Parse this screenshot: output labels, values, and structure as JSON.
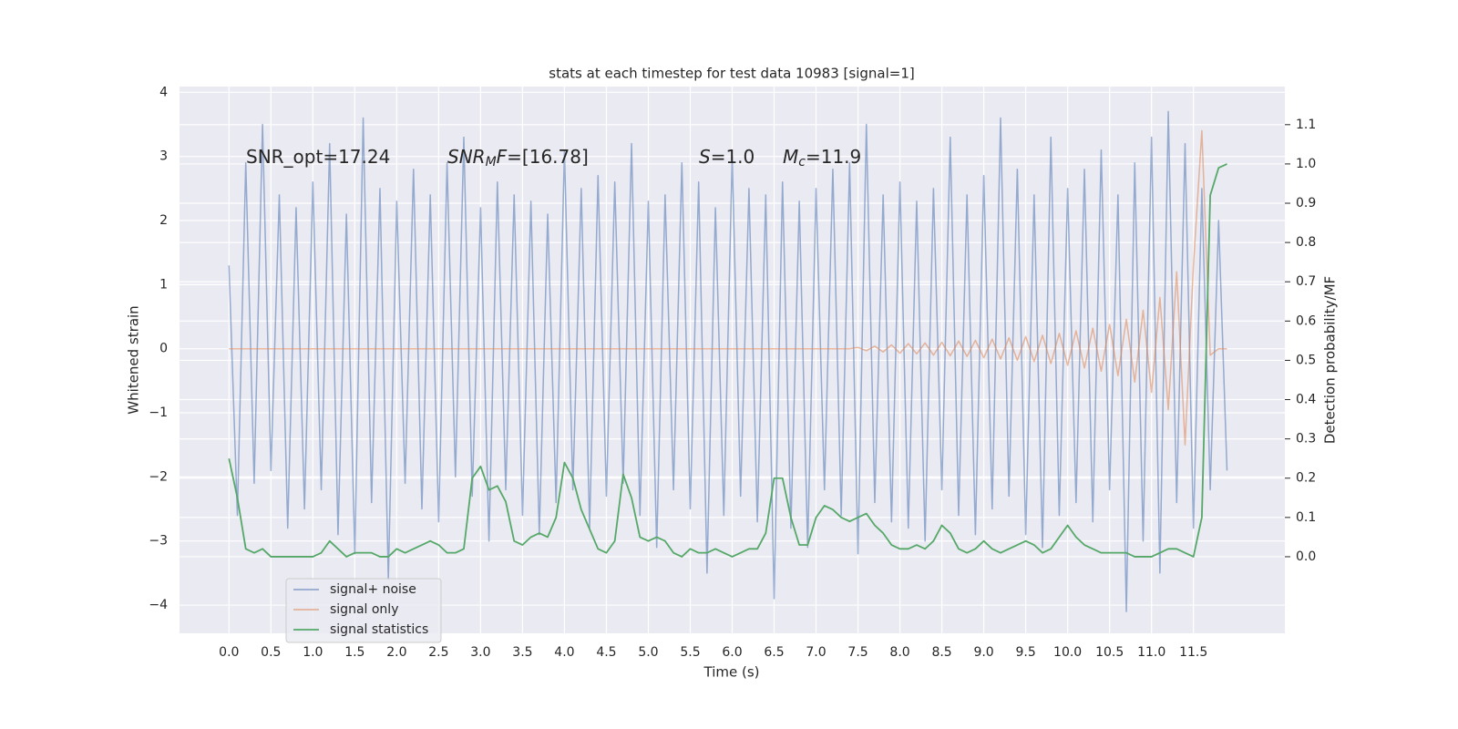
{
  "chart_data": {
    "type": "line",
    "title": "stats at each timestep for test data 10983 [signal=1]",
    "xlabel": "Time (s)",
    "ylabel": "Whitened strain",
    "y2label": "Detection probability/MF",
    "annotations": [
      [
        {
          "text": "SNR_opt=17.24"
        }
      ],
      [
        {
          "text": "SNR",
          "italic": true
        },
        {
          "text": "M",
          "italic": true,
          "sub": true
        },
        {
          "text": "F",
          "italic": true
        },
        {
          "text": "=[16.78]"
        }
      ],
      [
        {
          "text": "S",
          "italic": true
        },
        {
          "text": "=1.0"
        }
      ],
      [
        {
          "text": "M",
          "italic": true
        },
        {
          "text": "c",
          "italic": true,
          "sub": true
        },
        {
          "text": "=11.9"
        }
      ]
    ],
    "x": [
      0.0,
      0.1,
      0.2,
      0.3,
      0.4,
      0.5,
      0.6,
      0.7,
      0.8,
      0.9,
      1.0,
      1.1,
      1.2,
      1.3,
      1.4,
      1.5,
      1.6,
      1.7,
      1.8,
      1.9,
      2.0,
      2.1,
      2.2,
      2.3,
      2.4,
      2.5,
      2.6,
      2.7,
      2.8,
      2.9,
      3.0,
      3.1,
      3.2,
      3.3,
      3.4,
      3.5,
      3.6,
      3.7,
      3.8,
      3.9,
      4.0,
      4.1,
      4.2,
      4.3,
      4.4,
      4.5,
      4.6,
      4.7,
      4.8,
      4.9,
      5.0,
      5.1,
      5.2,
      5.3,
      5.4,
      5.5,
      5.6,
      5.7,
      5.8,
      5.9,
      6.0,
      6.1,
      6.2,
      6.3,
      6.4,
      6.5,
      6.6,
      6.7,
      6.8,
      6.9,
      7.0,
      7.1,
      7.2,
      7.3,
      7.4,
      7.5,
      7.6,
      7.7,
      7.8,
      7.9,
      8.0,
      8.1,
      8.2,
      8.3,
      8.4,
      8.5,
      8.6,
      8.7,
      8.8,
      8.9,
      9.0,
      9.1,
      9.2,
      9.3,
      9.4,
      9.5,
      9.6,
      9.7,
      9.8,
      9.9,
      10.0,
      10.1,
      10.2,
      10.3,
      10.4,
      10.5,
      10.6,
      10.7,
      10.8,
      10.9,
      11.0,
      11.1,
      11.2,
      11.3,
      11.4,
      11.5,
      11.6,
      11.7,
      11.8,
      11.9
    ],
    "series": [
      {
        "name": "signal+ noise",
        "color": "#4c72b0",
        "values": [
          1.3,
          -2.6,
          2.9,
          -2.1,
          3.5,
          -1.9,
          2.4,
          -2.8,
          2.2,
          -2.5,
          2.6,
          -2.2,
          3.2,
          -2.9,
          2.1,
          -3.2,
          3.6,
          -2.4,
          2.5,
          -3.6,
          2.3,
          -2.1,
          2.8,
          -2.5,
          2.4,
          -2.7,
          2.9,
          -2.0,
          3.3,
          -2.3,
          2.2,
          -3.0,
          2.6,
          -2.2,
          2.4,
          -2.6,
          2.3,
          -2.9,
          2.1,
          -2.4,
          3.1,
          -2.2,
          2.5,
          -2.8,
          2.7,
          -2.3,
          2.6,
          -2.1,
          3.2,
          -2.6,
          2.3,
          -3.1,
          2.4,
          -2.2,
          2.9,
          -2.5,
          2.6,
          -3.5,
          2.2,
          -2.6,
          3.0,
          -2.3,
          2.5,
          -2.7,
          2.4,
          -3.9,
          2.6,
          -2.8,
          2.3,
          -3.1,
          2.5,
          -2.2,
          2.8,
          -2.6,
          2.9,
          -3.2,
          3.5,
          -2.4,
          2.4,
          -2.7,
          2.6,
          -2.8,
          2.3,
          -3.0,
          2.5,
          -2.2,
          3.3,
          -2.6,
          2.4,
          -2.9,
          2.7,
          -2.5,
          3.6,
          -2.3,
          2.8,
          -2.9,
          2.4,
          -3.1,
          3.3,
          -2.6,
          2.5,
          -2.4,
          2.8,
          -2.7,
          3.1,
          -2.2,
          2.4,
          -4.1,
          2.9,
          -3.0,
          3.3,
          -3.5,
          3.7,
          -2.4,
          3.2,
          -2.8,
          2.5,
          -2.2,
          2.0,
          -1.9
        ]
      },
      {
        "name": "signal only",
        "color": "#dd8452",
        "values": [
          0,
          0,
          0,
          0,
          0,
          0,
          0,
          0,
          0,
          0,
          0,
          0,
          0,
          0,
          0,
          0,
          0,
          0,
          0,
          0,
          0,
          0,
          0,
          0,
          0,
          0,
          0,
          0,
          0,
          0,
          0,
          0,
          0,
          0,
          0,
          0,
          0,
          0,
          0,
          0,
          0,
          0,
          0,
          0,
          0,
          0,
          0,
          0,
          0,
          0,
          0,
          0,
          0,
          0,
          0,
          0,
          0,
          0,
          0,
          0,
          0,
          0,
          0,
          0,
          0,
          0,
          0,
          0,
          0,
          0,
          0,
          0,
          0,
          0,
          0,
          0.02,
          -0.03,
          0.04,
          -0.05,
          0.06,
          -0.07,
          0.08,
          -0.08,
          0.09,
          -0.1,
          0.1,
          -0.11,
          0.12,
          -0.12,
          0.13,
          -0.14,
          0.15,
          -0.16,
          0.17,
          -0.18,
          0.19,
          -0.2,
          0.21,
          -0.23,
          0.24,
          -0.26,
          0.28,
          -0.3,
          0.32,
          -0.35,
          0.38,
          -0.42,
          0.46,
          -0.52,
          0.6,
          -0.68,
          0.8,
          -0.95,
          1.2,
          -1.5,
          1.3,
          3.4,
          -0.1,
          0.0,
          0.0
        ]
      },
      {
        "name": "signal statistics",
        "color": "#55a868",
        "axis": "y2",
        "values": [
          0.25,
          0.15,
          0.02,
          0.01,
          0.02,
          0.0,
          0.0,
          0.0,
          0.0,
          0.0,
          0.0,
          0.01,
          0.04,
          0.02,
          0.0,
          0.01,
          0.01,
          0.01,
          0.0,
          0.0,
          0.02,
          0.01,
          0.02,
          0.03,
          0.04,
          0.03,
          0.01,
          0.01,
          0.02,
          0.2,
          0.23,
          0.17,
          0.18,
          0.14,
          0.04,
          0.03,
          0.05,
          0.06,
          0.05,
          0.1,
          0.24,
          0.2,
          0.12,
          0.07,
          0.02,
          0.01,
          0.04,
          0.21,
          0.15,
          0.05,
          0.04,
          0.05,
          0.04,
          0.01,
          0.0,
          0.02,
          0.01,
          0.01,
          0.02,
          0.01,
          0.0,
          0.01,
          0.02,
          0.02,
          0.06,
          0.2,
          0.2,
          0.1,
          0.03,
          0.03,
          0.1,
          0.13,
          0.12,
          0.1,
          0.09,
          0.1,
          0.11,
          0.08,
          0.06,
          0.03,
          0.02,
          0.02,
          0.03,
          0.02,
          0.04,
          0.08,
          0.06,
          0.02,
          0.01,
          0.02,
          0.04,
          0.02,
          0.01,
          0.02,
          0.03,
          0.04,
          0.03,
          0.01,
          0.02,
          0.05,
          0.08,
          0.05,
          0.03,
          0.02,
          0.01,
          0.01,
          0.01,
          0.01,
          0.0,
          0.0,
          0.0,
          0.01,
          0.02,
          0.02,
          0.01,
          0.0,
          0.1,
          0.92,
          0.99,
          1.0
        ]
      }
    ],
    "xlim": [
      -0.59,
      12.59
    ],
    "ylim": [
      -4.44,
      4.09
    ],
    "y2lim": [
      -0.195,
      1.197
    ],
    "xticks": [
      {
        "value": 0,
        "label": "0.0"
      },
      {
        "value": 0.5,
        "label": "0.5"
      },
      {
        "value": 1,
        "label": "1.0"
      },
      {
        "value": 1.5,
        "label": "1.5"
      },
      {
        "value": 2,
        "label": "2.0"
      },
      {
        "value": 2.5,
        "label": "2.5"
      },
      {
        "value": 3,
        "label": "3.0"
      },
      {
        "value": 3.5,
        "label": "3.5"
      },
      {
        "value": 4,
        "label": "4.0"
      },
      {
        "value": 4.5,
        "label": "4.5"
      },
      {
        "value": 5,
        "label": "5.0"
      },
      {
        "value": 5.5,
        "label": "5.5"
      },
      {
        "value": 6,
        "label": "6.0"
      },
      {
        "value": 6.5,
        "label": "6.5"
      },
      {
        "value": 7,
        "label": "7.0"
      },
      {
        "value": 7.5,
        "label": "7.5"
      },
      {
        "value": 8,
        "label": "8.0"
      },
      {
        "value": 8.5,
        "label": "8.5"
      },
      {
        "value": 9,
        "label": "9.0"
      },
      {
        "value": 9.5,
        "label": "9.5"
      },
      {
        "value": 10,
        "label": "10.0"
      },
      {
        "value": 10.5,
        "label": "10.5"
      },
      {
        "value": 11,
        "label": "11.0"
      },
      {
        "value": 11.5,
        "label": "11.5"
      }
    ],
    "yticks": [
      {
        "value": -4,
        "label": "−4"
      },
      {
        "value": -3,
        "label": "−3"
      },
      {
        "value": -2,
        "label": "−2"
      },
      {
        "value": -1,
        "label": "−1"
      },
      0,
      1,
      2,
      3,
      4
    ],
    "y2ticks": [
      {
        "value": 0,
        "label": "0.0"
      },
      {
        "value": 0.1,
        "label": "0.1"
      },
      {
        "value": 0.2,
        "label": "0.2"
      },
      {
        "value": 0.3,
        "label": "0.3"
      },
      {
        "value": 0.4,
        "label": "0.4"
      },
      {
        "value": 0.5,
        "label": "0.5"
      },
      {
        "value": 0.6,
        "label": "0.6"
      },
      {
        "value": 0.7,
        "label": "0.7"
      },
      {
        "value": 0.8,
        "label": "0.8"
      },
      {
        "value": 0.9,
        "label": "0.9"
      },
      {
        "value": 1.0,
        "label": "1.0"
      },
      {
        "value": 1.1,
        "label": "1.1"
      }
    ],
    "grid": true,
    "legend": "lower left",
    "background": "#eaeaf2"
  }
}
